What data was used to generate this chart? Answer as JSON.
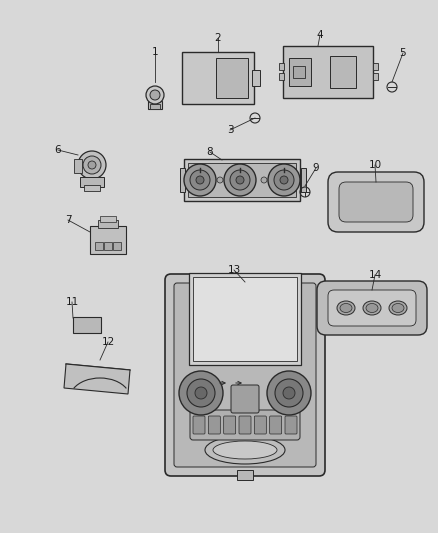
{
  "bg_color": "#d8d8d8",
  "fig_width": 4.38,
  "fig_height": 5.33,
  "dpi": 100,
  "line_color": "#2a2a2a",
  "label_color": "#1a1a1a",
  "font_size_num": 7.5
}
